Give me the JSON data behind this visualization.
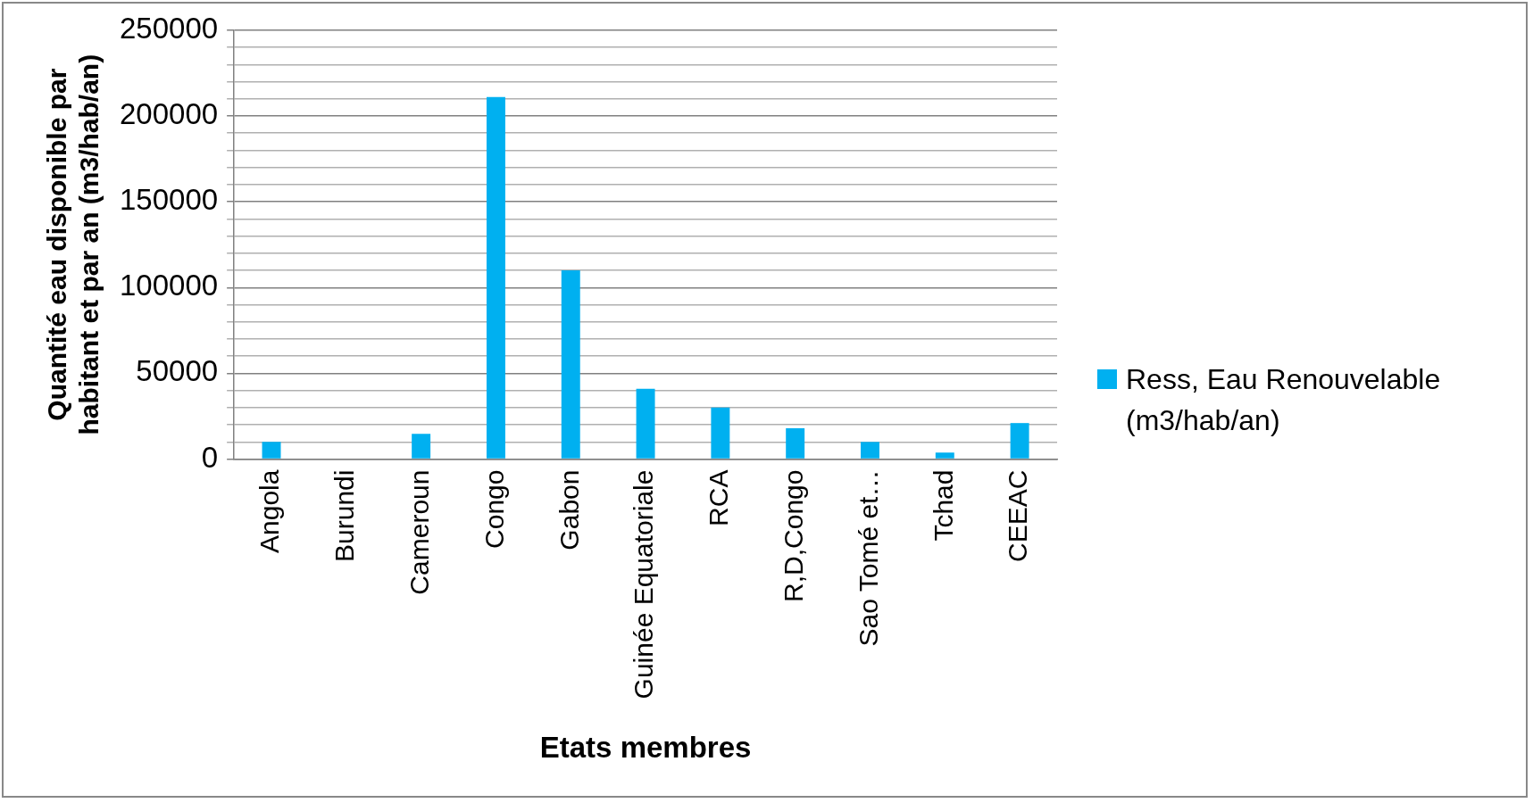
{
  "chart_data": {
    "type": "bar",
    "xlabel": "Etats membres",
    "ylabel": "Quantité eau disponible par habitant et par an (m3/hab/an)",
    "categories": [
      "Angola",
      "Burundi",
      "Cameroun",
      "Congo",
      "Gabon",
      "Guinée Equatoriale",
      "RCA",
      "R,D,Congo",
      "Sao Tomé et…",
      "Tchad",
      "CEEAC"
    ],
    "series": [
      {
        "name": "Ress, Eau Renouvelable (m3/hab/an)",
        "color": "#00b0f0",
        "values": [
          10000,
          null,
          14700,
          211000,
          110000,
          41000,
          30000,
          18000,
          10000,
          3800,
          21000
        ]
      }
    ],
    "ylim": [
      0,
      250000
    ],
    "yticks": [
      0,
      {
        "value": 10000,
        "label": null
      },
      {
        "value": 20000,
        "label": null
      },
      {
        "value": 30000,
        "label": null
      },
      {
        "value": 40000,
        "label": null
      },
      50000,
      {
        "value": 60000,
        "label": null
      },
      {
        "value": 70000,
        "label": null
      },
      {
        "value": 80000,
        "label": null
      },
      {
        "value": 90000,
        "label": null
      },
      100000,
      {
        "value": 110000,
        "label": null
      },
      {
        "value": 120000,
        "label": null
      },
      {
        "value": 130000,
        "label": null
      },
      {
        "value": 140000,
        "label": null
      },
      150000,
      {
        "value": 160000,
        "label": null
      },
      {
        "value": 170000,
        "label": null
      },
      {
        "value": 180000,
        "label": null
      },
      {
        "value": 190000,
        "label": null
      },
      200000,
      {
        "value": 210000,
        "label": null
      },
      {
        "value": 220000,
        "label": null
      },
      {
        "value": 230000,
        "label": null
      },
      {
        "value": 240000,
        "label": null
      },
      250000
    ],
    "grid": "y",
    "legend": "right"
  }
}
